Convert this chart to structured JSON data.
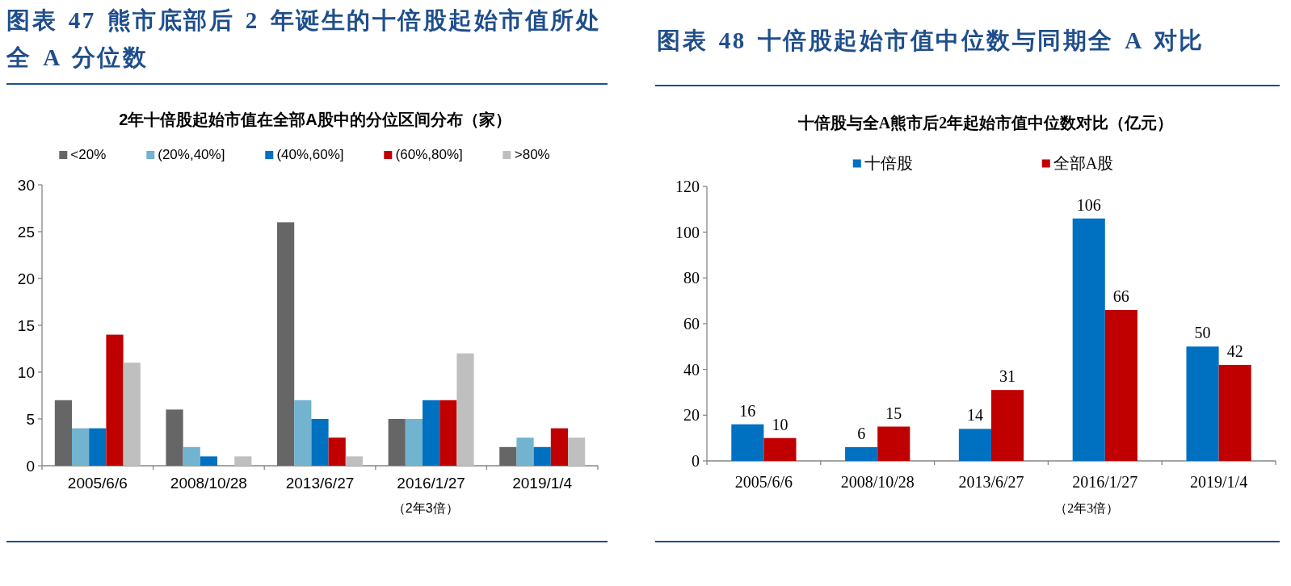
{
  "chart_data": [
    {
      "type": "bar",
      "title": "图表 47 熊市底部后 2 年诞生的十倍股起始市值所处全 A 分位数",
      "subtitle": "2年十倍股起始市值在全部A股中的分位区间分布（家）",
      "xlabel": "（2年3倍）",
      "categories": [
        "2005/6/6",
        "2008/10/28",
        "2013/6/27",
        "2016/1/27",
        "2019/1/4"
      ],
      "series": [
        {
          "name": "<20%",
          "color": "#666666",
          "values": [
            7,
            6,
            26,
            5,
            2
          ]
        },
        {
          "name": "(20%,40%]",
          "color": "#72b3d0",
          "values": [
            4,
            2,
            7,
            5,
            3
          ]
        },
        {
          "name": "(40%,60%]",
          "color": "#0070c0",
          "values": [
            4,
            1,
            5,
            7,
            2
          ]
        },
        {
          "name": "(60%,80%]",
          "color": "#c00000",
          "values": [
            14,
            0,
            3,
            7,
            4
          ]
        },
        {
          "name": ">80%",
          "color": "#bfbfbf",
          "values": [
            11,
            1,
            1,
            12,
            3
          ]
        }
      ],
      "ylim": [
        0,
        30
      ],
      "yticks": [
        0,
        5,
        10,
        15,
        20,
        25,
        30
      ],
      "legend": "top"
    },
    {
      "type": "bar",
      "title": "图表 48 十倍股起始市值中位数与同期全 A 对比",
      "subtitle": "十倍股与全A熊市后2年起始市值中位数对比（亿元）",
      "xlabel": "（2年3倍）",
      "categories": [
        "2005/6/6",
        "2008/10/28",
        "2013/6/27",
        "2016/1/27",
        "2019/1/4"
      ],
      "series": [
        {
          "name": "十倍股",
          "color": "#0070c0",
          "values": [
            16,
            6,
            14,
            106,
            50
          ]
        },
        {
          "name": "全部A股",
          "color": "#c00000",
          "values": [
            10,
            15,
            31,
            66,
            42
          ]
        }
      ],
      "ylim": [
        0,
        120
      ],
      "yticks": [
        0,
        20,
        40,
        60,
        80,
        100,
        120
      ],
      "legend": "top",
      "data_labels": true
    }
  ]
}
